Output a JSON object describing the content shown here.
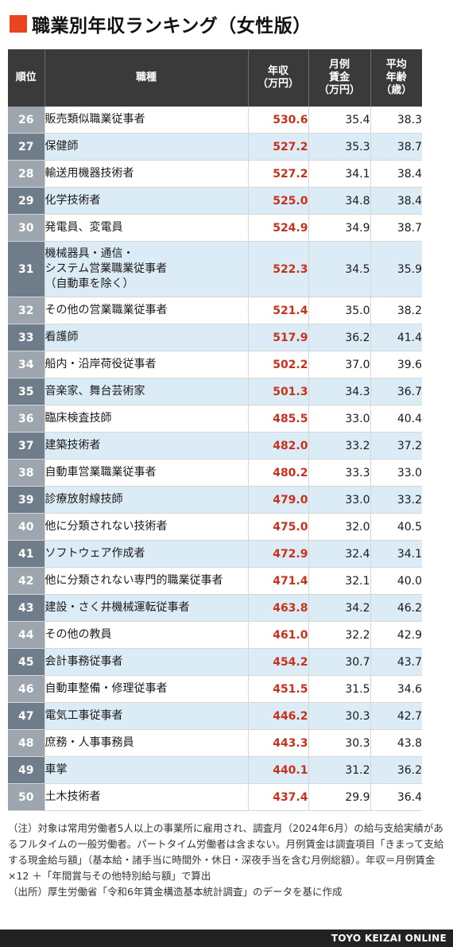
{
  "title": "職業別年収ランキング（女性版）",
  "headers": {
    "rank": "順位",
    "job": "職種",
    "salary": [
      "年収",
      "（万円）"
    ],
    "monthly": [
      "月例",
      "賃金",
      "（万円）"
    ],
    "age": [
      "平均",
      "年齢",
      "（歳）"
    ]
  },
  "rows": [
    {
      "rank": "26",
      "job": [
        "販売類似職業従事者"
      ],
      "salary": "530.6",
      "monthly": "35.4",
      "age": "38.3"
    },
    {
      "rank": "27",
      "job": [
        "保健師"
      ],
      "salary": "527.2",
      "monthly": "35.3",
      "age": "38.7"
    },
    {
      "rank": "28",
      "job": [
        "輸送用機器技術者"
      ],
      "salary": "527.2",
      "monthly": "34.1",
      "age": "38.4"
    },
    {
      "rank": "29",
      "job": [
        "化学技術者"
      ],
      "salary": "525.0",
      "monthly": "34.8",
      "age": "38.4"
    },
    {
      "rank": "30",
      "job": [
        "発電員、変電員"
      ],
      "salary": "524.9",
      "monthly": "34.9",
      "age": "38.7"
    },
    {
      "rank": "31",
      "job": [
        "機械器具・通信・",
        "システム営業職業従事者",
        "（自動車を除く）"
      ],
      "salary": "522.3",
      "monthly": "34.5",
      "age": "35.9"
    },
    {
      "rank": "32",
      "job": [
        "その他の営業職業従事者"
      ],
      "salary": "521.4",
      "monthly": "35.0",
      "age": "38.2"
    },
    {
      "rank": "33",
      "job": [
        "看護師"
      ],
      "salary": "517.9",
      "monthly": "36.2",
      "age": "41.4"
    },
    {
      "rank": "34",
      "job": [
        "船内・沿岸荷役従事者"
      ],
      "salary": "502.2",
      "monthly": "37.0",
      "age": "39.6"
    },
    {
      "rank": "35",
      "job": [
        "音楽家、舞台芸術家"
      ],
      "salary": "501.3",
      "monthly": "34.3",
      "age": "36.7"
    },
    {
      "rank": "36",
      "job": [
        "臨床検査技師"
      ],
      "salary": "485.5",
      "monthly": "33.0",
      "age": "40.4"
    },
    {
      "rank": "37",
      "job": [
        "建築技術者"
      ],
      "salary": "482.0",
      "monthly": "33.2",
      "age": "37.2"
    },
    {
      "rank": "38",
      "job": [
        "自動車営業職業従事者"
      ],
      "salary": "480.2",
      "monthly": "33.3",
      "age": "33.0"
    },
    {
      "rank": "39",
      "job": [
        "診療放射線技師"
      ],
      "salary": "479.0",
      "monthly": "33.0",
      "age": "33.2"
    },
    {
      "rank": "40",
      "job": [
        "他に分類されない技術者"
      ],
      "salary": "475.0",
      "monthly": "32.0",
      "age": "40.5"
    },
    {
      "rank": "41",
      "job": [
        "ソフトウェア作成者"
      ],
      "salary": "472.9",
      "monthly": "32.4",
      "age": "34.1"
    },
    {
      "rank": "42",
      "job": [
        "他に分類されない専門的職業従事者"
      ],
      "salary": "471.4",
      "monthly": "32.1",
      "age": "40.0"
    },
    {
      "rank": "43",
      "job": [
        "建設・さく井機械運転従事者"
      ],
      "salary": "463.8",
      "monthly": "34.2",
      "age": "46.2"
    },
    {
      "rank": "44",
      "job": [
        "その他の教員"
      ],
      "salary": "461.0",
      "monthly": "32.2",
      "age": "42.9"
    },
    {
      "rank": "45",
      "job": [
        "会計事務従事者"
      ],
      "salary": "454.2",
      "monthly": "30.7",
      "age": "43.7"
    },
    {
      "rank": "46",
      "job": [
        "自動車整備・修理従事者"
      ],
      "salary": "451.5",
      "monthly": "31.5",
      "age": "34.6"
    },
    {
      "rank": "47",
      "job": [
        "電気工事従事者"
      ],
      "salary": "446.2",
      "monthly": "30.3",
      "age": "42.7"
    },
    {
      "rank": "48",
      "job": [
        "庶務・人事事務員"
      ],
      "salary": "443.3",
      "monthly": "30.3",
      "age": "43.8"
    },
    {
      "rank": "49",
      "job": [
        "車掌"
      ],
      "salary": "440.1",
      "monthly": "31.2",
      "age": "36.2"
    },
    {
      "rank": "50",
      "job": [
        "土木技術者"
      ],
      "salary": "437.4",
      "monthly": "29.9",
      "age": "36.4"
    }
  ],
  "notes": [
    "（注）対象は常用労働者5人以上の事業所に雇用され、調査月（2024年6月）の給与支給実績があるフルタイムの一般労働者。パートタイム労働者は含まない。月例賃金は調査項目「きまって支給する現金給与額」（基本給・諸手当に時間外・休日・深夜手当を含む月例総額）。年収＝月例賃金 ×12 ＋「年間賞与その他特別給与額」で算出",
    "（出所）厚生労働省「令和6年賃金構造基本統計調査」のデータを基に作成"
  ],
  "footer": "TOYO KEIZAI ONLINE",
  "colors": {
    "accent": "#e8461e",
    "salary_text": "#c6321b",
    "header_bg": "#3a3a3a",
    "rank_light": "#9da6ae",
    "rank_dark": "#6f7d8b",
    "row_stripe": "#dcecf6"
  }
}
